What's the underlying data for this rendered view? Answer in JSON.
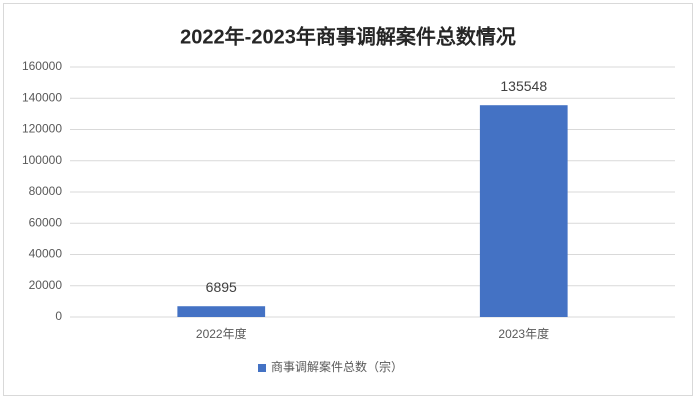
{
  "chart_data": {
    "type": "bar",
    "title": "2022年-2023年商事调解案件总数情况",
    "categories": [
      "2022年度",
      "2023年度"
    ],
    "series": [
      {
        "name": "商事调解案件总数（宗）",
        "color": "#4472c4",
        "values": [
          6895,
          135548
        ]
      }
    ],
    "ylim": [
      0,
      160000
    ],
    "yticks": [
      0,
      20000,
      40000,
      60000,
      80000,
      100000,
      120000,
      140000,
      160000
    ],
    "grid": true,
    "legend": "bottom"
  }
}
